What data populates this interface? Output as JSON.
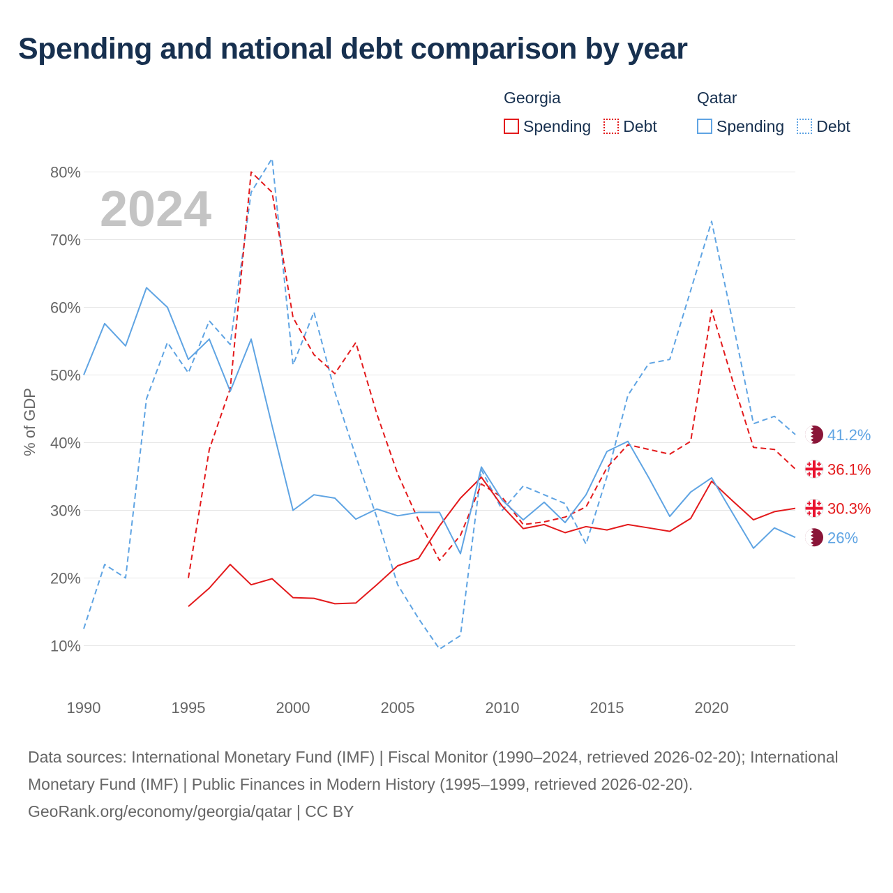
{
  "title": "Spending and national debt comparison by year",
  "year_watermark": "2024",
  "legend": {
    "groups": [
      {
        "country": "Georgia",
        "spending_label": "Spending",
        "debt_label": "Debt",
        "color": "#e31a1c"
      },
      {
        "country": "Qatar",
        "spending_label": "Spending",
        "debt_label": "Debt",
        "color": "#5fa4e3"
      }
    ]
  },
  "chart_data": {
    "type": "line",
    "title": "Spending and national debt comparison by year",
    "xlabel": "",
    "ylabel": "% of GDP",
    "xlim": [
      1990,
      2024
    ],
    "ylim": [
      5,
      85
    ],
    "x_ticks": [
      "1990",
      "1995",
      "2000",
      "2005",
      "2010",
      "2015",
      "2020"
    ],
    "y_ticks": [
      "10%",
      "20%",
      "30%",
      "40%",
      "50%",
      "60%",
      "70%",
      "80%"
    ],
    "grid": true,
    "series": [
      {
        "name": "Qatar Debt",
        "country": "Qatar",
        "metric": "Debt",
        "color": "#5fa4e3",
        "style": "dashed",
        "end_label": "41.2%",
        "x": [
          1990,
          1991,
          1992,
          1993,
          1994,
          1995,
          1996,
          1997,
          1998,
          1999,
          2000,
          2001,
          2002,
          2003,
          2004,
          2005,
          2006,
          2007,
          2008,
          2009,
          2010,
          2011,
          2012,
          2013,
          2014,
          2015,
          2016,
          2017,
          2018,
          2019,
          2020,
          2021,
          2022,
          2023,
          2024
        ],
        "values": [
          12.5,
          22,
          20,
          46.5,
          54.8,
          50.3,
          58,
          54.5,
          77,
          82,
          51.5,
          59.3,
          47.5,
          38,
          29,
          19,
          14,
          9.5,
          11.5,
          36,
          30,
          33.6,
          32.3,
          31,
          25,
          35,
          47,
          51.7,
          52.3,
          62.5,
          72.7,
          58,
          42.8,
          43.9,
          41.2
        ]
      },
      {
        "name": "Georgia Debt",
        "country": "Georgia",
        "metric": "Debt",
        "color": "#e31a1c",
        "style": "dashed",
        "end_label": "36.1%",
        "x": [
          1995,
          1996,
          1997,
          1998,
          1999,
          2000,
          2001,
          2002,
          2003,
          2004,
          2005,
          2006,
          2007,
          2008,
          2009,
          2010,
          2011,
          2012,
          2013,
          2014,
          2015,
          2016,
          2017,
          2018,
          2019,
          2020,
          2021,
          2022,
          2023,
          2024
        ],
        "values": [
          20,
          39,
          48,
          80,
          77,
          58.5,
          53,
          50.2,
          54.8,
          44.3,
          35.4,
          28.5,
          22.6,
          26.3,
          33.9,
          31.9,
          27.9,
          28.3,
          29,
          30.5,
          36.3,
          39.7,
          39,
          38.3,
          40.2,
          59.6,
          49.2,
          39.3,
          39,
          36.1
        ]
      },
      {
        "name": "Georgia Spending",
        "country": "Georgia",
        "metric": "Spending",
        "color": "#e31a1c",
        "style": "solid",
        "end_label": "30.3%",
        "x": [
          1995,
          1996,
          1997,
          1998,
          1999,
          2000,
          2001,
          2002,
          2003,
          2004,
          2005,
          2006,
          2007,
          2008,
          2009,
          2010,
          2011,
          2012,
          2013,
          2014,
          2015,
          2016,
          2017,
          2018,
          2019,
          2020,
          2021,
          2022,
          2023,
          2024
        ],
        "values": [
          15.8,
          18.5,
          22,
          19,
          19.9,
          17.1,
          17,
          16.2,
          16.3,
          19,
          21.8,
          22.9,
          27.7,
          31.8,
          34.9,
          30.6,
          27.3,
          27.9,
          26.7,
          27.6,
          27.1,
          27.9,
          27.4,
          26.9,
          28.8,
          34.3,
          31.4,
          28.6,
          29.8,
          30.3
        ]
      },
      {
        "name": "Qatar Spending",
        "country": "Qatar",
        "metric": "Spending",
        "color": "#5fa4e3",
        "style": "solid",
        "end_label": "26%",
        "x": [
          1990,
          1991,
          1992,
          1993,
          1994,
          1995,
          1996,
          1997,
          1998,
          1999,
          2000,
          2001,
          2002,
          2003,
          2004,
          2005,
          2006,
          2007,
          2008,
          2009,
          2010,
          2011,
          2012,
          2013,
          2014,
          2015,
          2016,
          2017,
          2018,
          2019,
          2020,
          2021,
          2022,
          2023,
          2024
        ],
        "values": [
          50,
          57.6,
          54.3,
          62.9,
          60,
          52.3,
          55.3,
          47.6,
          55.3,
          42.5,
          30,
          32.3,
          31.8,
          28.7,
          30.2,
          29.2,
          29.7,
          29.7,
          23.6,
          36.4,
          31.5,
          28.6,
          31.2,
          28.2,
          32.3,
          38.7,
          40.2,
          34.8,
          29.1,
          32.7,
          34.8,
          29.6,
          24.4,
          27.4,
          26
        ]
      }
    ]
  },
  "footer": {
    "sources": "Data sources: International Monetary Fund (IMF) | Fiscal Monitor (1990–2024, retrieved 2026-02-20); International Monetary Fund (IMF) | Public Finances in Modern History (1995–1999, retrieved 2026-02-20).",
    "attribution": "GeoRank.org/economy/georgia/qatar | CC BY"
  }
}
